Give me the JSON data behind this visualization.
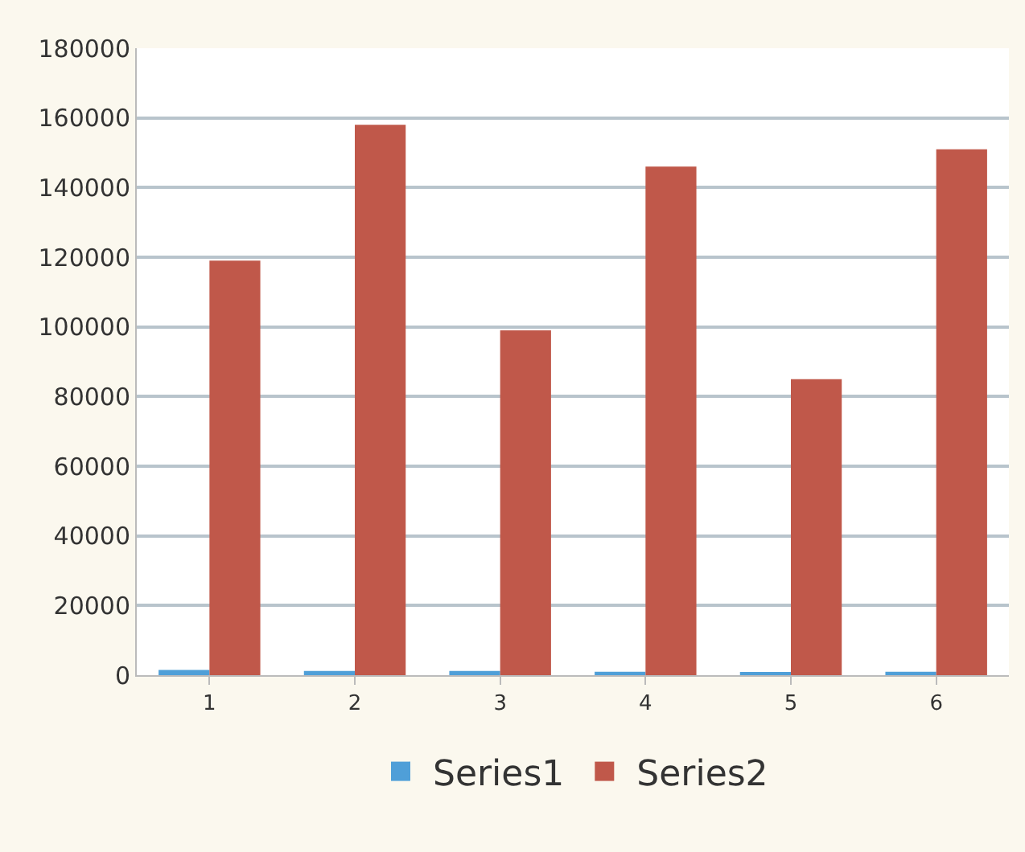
{
  "chart_data": {
    "type": "bar",
    "categories": [
      "1",
      "2",
      "3",
      "4",
      "5",
      "6"
    ],
    "series": [
      {
        "name": "Series1",
        "color": "#4f9fd8",
        "values": [
          1500,
          1200,
          1200,
          1000,
          800,
          1000
        ]
      },
      {
        "name": "Series2",
        "color": "#c0584a",
        "values": [
          119000,
          158000,
          99000,
          146000,
          85000,
          151000
        ]
      }
    ],
    "ylim": [
      0,
      180000
    ],
    "yticks": [
      0,
      20000,
      40000,
      60000,
      80000,
      100000,
      120000,
      140000,
      160000,
      180000
    ],
    "grid": "y",
    "legend": "bottom"
  }
}
